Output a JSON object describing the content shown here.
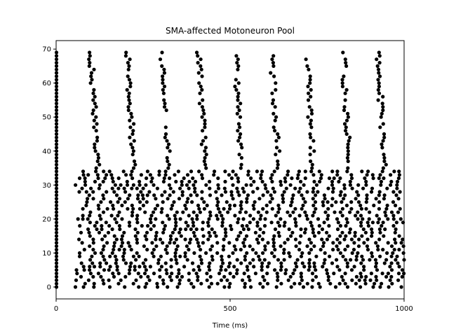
{
  "chart_data": {
    "type": "scatter",
    "title": "SMA-affected Motoneuron Pool",
    "xlabel": "Time (ms)",
    "ylabel": "",
    "xlim": [
      0,
      1000
    ],
    "ylim": [
      -3.5,
      72.5
    ],
    "x_ticks": [
      0,
      500,
      1000
    ],
    "y_ticks": [
      0,
      10,
      20,
      30,
      40,
      50,
      60,
      70
    ],
    "grid": false,
    "legend": "none",
    "marker_color": "#000000",
    "description": "Raster plot: each point is a spike (x = time in ms, y = neuron index). All neurons 0-69 fire at t≈0; lower-index neurons (0-34) fire densely thereafter, upper-index neurons (35-69) fire in diagonal bands about every 100 ms.",
    "spikes": {
      "initial_burst_time": 1,
      "initial_burst_neurons": [
        0,
        69
      ],
      "band_period_ms": 100,
      "band_neurons": [
        35,
        69
      ],
      "band_starts_ms": [
        100,
        205,
        305,
        410,
        515,
        620,
        720,
        825,
        925
      ],
      "band_drift_ms": 18,
      "dense_neurons": [
        0,
        34
      ],
      "dense_time_range_ms": [
        55,
        1000
      ],
      "dense_mean_isi_ms": 22
    }
  }
}
